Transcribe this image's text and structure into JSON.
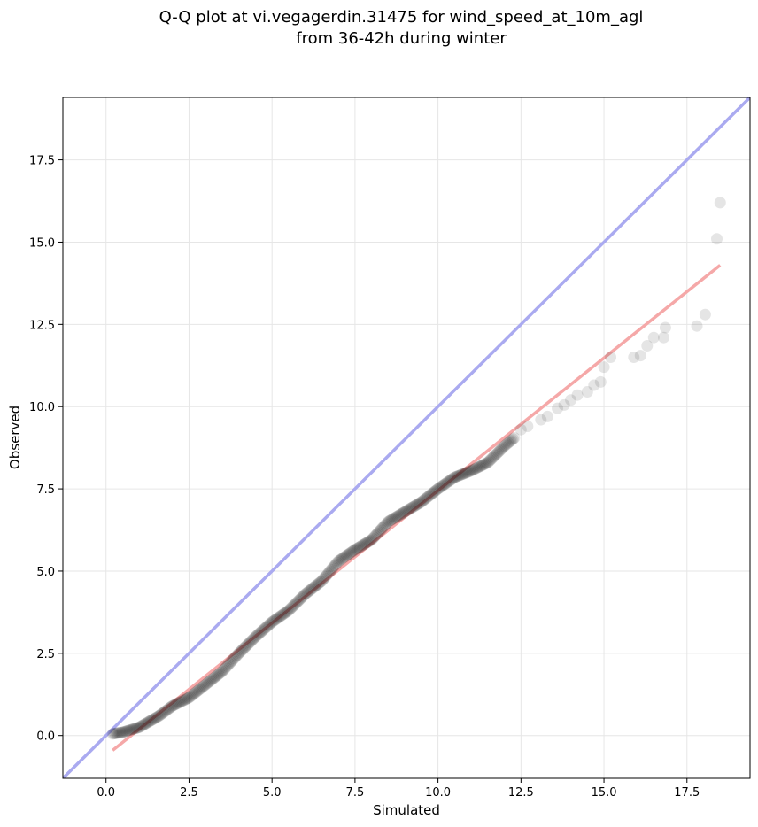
{
  "chart_data": {
    "type": "scatter",
    "title_lines": [
      "Q-Q plot at vi.vegagerdin.31475 for wind_speed_at_10m_agl",
      "from 36-42h during winter"
    ],
    "xlabel": "Simulated",
    "ylabel": "Observed",
    "xlim": [
      -1.3,
      19.4
    ],
    "ylim": [
      -1.3,
      19.4
    ],
    "xticks": [
      0.0,
      2.5,
      5.0,
      7.5,
      10.0,
      12.5,
      15.0,
      17.5
    ],
    "yticks": [
      0.0,
      2.5,
      5.0,
      7.5,
      10.0,
      12.5,
      15.0,
      17.5
    ],
    "xtick_labels": [
      "0.0",
      "2.5",
      "5.0",
      "7.5",
      "10.0",
      "12.5",
      "15.0",
      "17.5"
    ],
    "ytick_labels": [
      "0.0",
      "2.5",
      "5.0",
      "7.5",
      "10.0",
      "12.5",
      "15.0",
      "17.5"
    ],
    "grid": true,
    "colors": {
      "identity_line": "#aaaaf0",
      "fit_line": "#f5a8a8",
      "points": "#000000"
    },
    "identity_line": {
      "x": [
        -1.3,
        19.4
      ],
      "y": [
        -1.3,
        19.4
      ]
    },
    "fit_line": {
      "x": [
        0.2,
        18.5
      ],
      "y": [
        -0.45,
        14.3
      ]
    },
    "quantile_knots": [
      [
        0.2,
        0.05
      ],
      [
        0.5,
        0.1
      ],
      [
        1.0,
        0.25
      ],
      [
        1.6,
        0.6
      ],
      [
        2.0,
        0.9
      ],
      [
        2.5,
        1.15
      ],
      [
        3.0,
        1.55
      ],
      [
        3.5,
        1.95
      ],
      [
        4.0,
        2.5
      ],
      [
        4.5,
        3.0
      ],
      [
        5.0,
        3.45
      ],
      [
        5.5,
        3.8
      ],
      [
        6.0,
        4.3
      ],
      [
        6.5,
        4.7
      ],
      [
        7.0,
        5.3
      ],
      [
        7.5,
        5.65
      ],
      [
        8.0,
        5.95
      ],
      [
        8.5,
        6.5
      ],
      [
        9.0,
        6.8
      ],
      [
        9.5,
        7.1
      ],
      [
        10.0,
        7.5
      ],
      [
        10.5,
        7.85
      ],
      [
        11.0,
        8.05
      ],
      [
        11.5,
        8.3
      ],
      [
        12.0,
        8.8
      ],
      [
        12.3,
        9.05
      ]
    ],
    "sparse_points": [
      [
        12.5,
        9.3
      ],
      [
        12.7,
        9.4
      ],
      [
        13.1,
        9.6
      ],
      [
        13.3,
        9.7
      ],
      [
        13.6,
        9.95
      ],
      [
        13.8,
        10.05
      ],
      [
        14.0,
        10.2
      ],
      [
        14.2,
        10.35
      ],
      [
        14.5,
        10.45
      ],
      [
        14.7,
        10.65
      ],
      [
        14.9,
        10.75
      ],
      [
        15.0,
        11.2
      ],
      [
        15.2,
        11.5
      ],
      [
        15.9,
        11.5
      ],
      [
        16.1,
        11.55
      ],
      [
        16.3,
        11.85
      ],
      [
        16.5,
        12.1
      ],
      [
        16.8,
        12.1
      ],
      [
        16.85,
        12.4
      ],
      [
        17.8,
        12.45
      ],
      [
        18.05,
        12.8
      ],
      [
        18.4,
        15.1
      ],
      [
        18.5,
        16.2
      ]
    ]
  }
}
